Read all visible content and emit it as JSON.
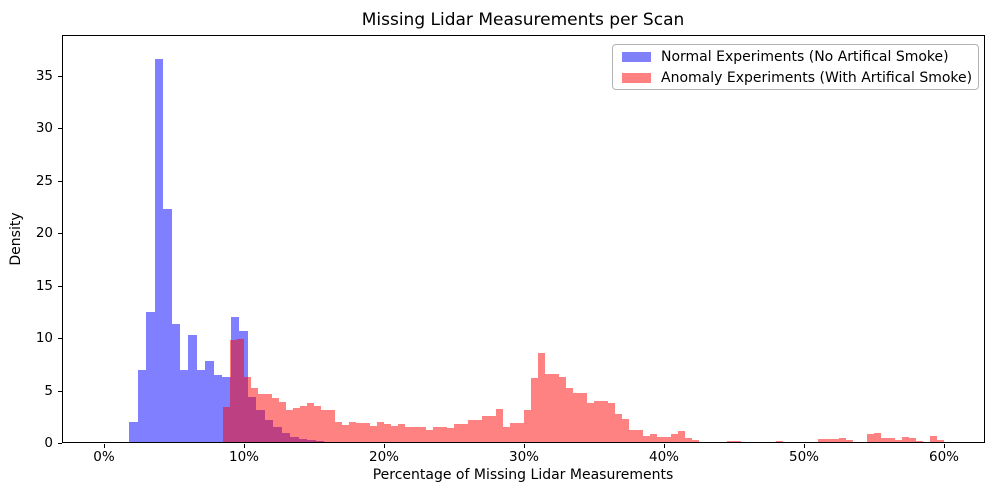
{
  "title": "Missing Lidar Measurements per Scan",
  "chart_data": {
    "type": "bar",
    "subtype": "overlaid-histograms",
    "title": "Missing Lidar Measurements per Scan",
    "xlabel": "Percentage of Missing Lidar Measurements",
    "ylabel": "Density",
    "grid": false,
    "legend_position": "upper right",
    "xlim_pct": [
      -3,
      63
    ],
    "ylim": [
      0,
      39
    ],
    "x_tick_values": [
      0,
      10,
      20,
      30,
      40,
      50,
      60
    ],
    "x_tick_labels": [
      "0%",
      "10%",
      "20%",
      "30%",
      "40%",
      "50%",
      "60%"
    ],
    "y_tick_values": [
      0,
      5,
      10,
      15,
      20,
      25,
      30,
      35
    ],
    "y_tick_labels": [
      "0",
      "5",
      "10",
      "15",
      "20",
      "25",
      "30",
      "35"
    ],
    "overlap_color_hex": "#be4182",
    "series": [
      {
        "name": "Normal Experiments (No Artifical Smoke)",
        "color_hex": "#8080f8",
        "color_rgba": "rgba(0,0,255,0.5)",
        "bin_start_pct": 1.8,
        "bin_width_pct": 0.605,
        "densities": [
          2.0,
          7.0,
          12.5,
          36.6,
          22.3,
          11.3,
          7.0,
          10.3,
          7.0,
          7.8,
          6.5,
          6.3,
          12.0,
          10.7,
          4.4,
          3.1,
          2.2,
          1.5,
          1.0,
          0.6,
          0.4,
          0.25,
          0.15
        ]
      },
      {
        "name": "Anomaly Experiments (With Artifical Smoke)",
        "color_hex": "#ff8080",
        "color_rgba": "rgba(255,0,0,0.49)",
        "bin_start_pct": 8.5,
        "bin_width_pct": 0.5,
        "densities": [
          3.4,
          9.8,
          9.9,
          6.3,
          5.2,
          4.7,
          4.7,
          4.3,
          3.9,
          3.1,
          3.3,
          3.5,
          3.8,
          3.5,
          3.1,
          3.1,
          2.0,
          1.7,
          2.0,
          1.9,
          1.9,
          1.65,
          2.0,
          1.85,
          1.6,
          1.85,
          1.5,
          1.55,
          1.55,
          1.25,
          1.55,
          1.55,
          1.4,
          1.8,
          1.8,
          2.2,
          2.2,
          2.6,
          2.6,
          3.2,
          1.55,
          1.9,
          1.9,
          3.15,
          6.2,
          8.55,
          6.6,
          6.6,
          6.3,
          5.2,
          4.8,
          4.8,
          3.8,
          4.0,
          4.0,
          3.8,
          2.8,
          2.25,
          1.25,
          1.25,
          0.65,
          0.9,
          0.6,
          0.6,
          0.85,
          1.1,
          0.45,
          0.3,
          0.1,
          0.1,
          0.05,
          0.05,
          0.15,
          0.15,
          0.05,
          0,
          0,
          0,
          0,
          0.22,
          0,
          0,
          0,
          0,
          0,
          0.35,
          0.35,
          0.35,
          0.5,
          0.27,
          0,
          0,
          0.9,
          1.0,
          0.5,
          0.5,
          0.27,
          0.6,
          0.45,
          0.22,
          0,
          0.7,
          0.3
        ]
      }
    ]
  },
  "legend": {
    "items": [
      {
        "label": "Normal Experiments (No Artifical Smoke)",
        "swatch_hex": "#8080f8"
      },
      {
        "label": "Anomaly Experiments (With Artifical Smoke)",
        "swatch_hex": "#ff8080"
      }
    ]
  }
}
